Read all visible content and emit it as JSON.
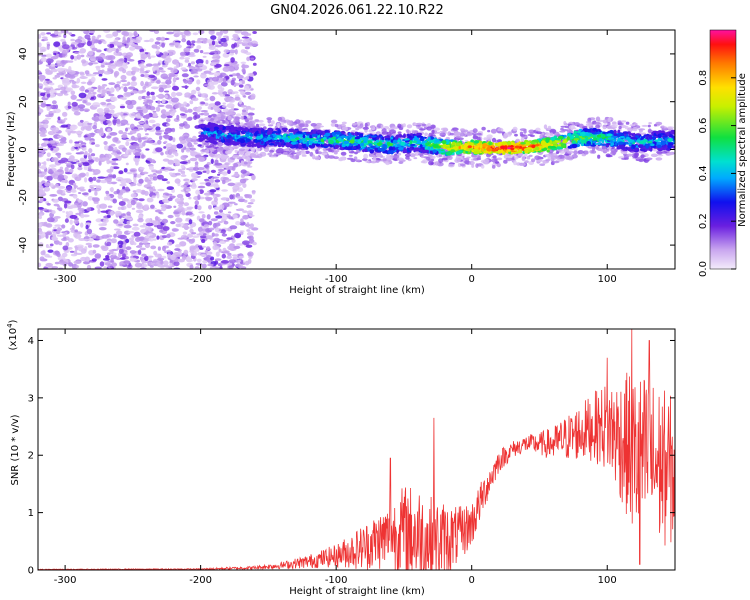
{
  "title": "GN04.2026.061.22.10.R22",
  "chart_data": [
    {
      "type": "heatmap",
      "xlabel": "Height of straight line (km)",
      "ylabel": "Frequency (Hz)",
      "xlim": [
        -320,
        150
      ],
      "ylim": [
        -50,
        50
      ],
      "x_ticks": [
        -300,
        -200,
        -100,
        0,
        100
      ],
      "y_ticks": [
        -40,
        -20,
        0,
        20,
        40
      ],
      "colorbar": {
        "label": "Normalized spectral amplitude",
        "range": [
          0,
          1
        ],
        "ticks": [
          "0.0",
          "0.2",
          "0.4",
          "0.6",
          "0.8"
        ]
      },
      "ridge": [
        {
          "x": -195,
          "y": 7,
          "amp": 0.35
        },
        {
          "x": -180,
          "y": 6,
          "amp": 0.4
        },
        {
          "x": -160,
          "y": 5,
          "amp": 0.4
        },
        {
          "x": -140,
          "y": 5,
          "amp": 0.45
        },
        {
          "x": -120,
          "y": 4,
          "amp": 0.45
        },
        {
          "x": -100,
          "y": 4,
          "amp": 0.5
        },
        {
          "x": -80,
          "y": 3,
          "amp": 0.5
        },
        {
          "x": -60,
          "y": 2,
          "amp": 0.5
        },
        {
          "x": -40,
          "y": 3,
          "amp": 0.45
        },
        {
          "x": -20,
          "y": 1,
          "amp": 0.7
        },
        {
          "x": 0,
          "y": 1,
          "amp": 0.85
        },
        {
          "x": 20,
          "y": 0.5,
          "amp": 0.95
        },
        {
          "x": 40,
          "y": 1,
          "amp": 0.9
        },
        {
          "x": 60,
          "y": 2,
          "amp": 0.75
        },
        {
          "x": 80,
          "y": 5,
          "amp": 0.6
        },
        {
          "x": 100,
          "y": 5,
          "amp": 0.5
        },
        {
          "x": 120,
          "y": 3,
          "amp": 0.45
        },
        {
          "x": 150,
          "y": 4,
          "amp": 0.4
        }
      ]
    },
    {
      "type": "line",
      "xlabel": "Height of straight line (km)",
      "ylabel": "SNR (10 * v/v)",
      "y_multiplier_label": "(x10",
      "y_multiplier_exp": "4",
      "xlim": [
        -320,
        150
      ],
      "ylim": [
        0,
        4.2
      ],
      "x_ticks": [
        -300,
        -200,
        -100,
        0,
        100
      ],
      "y_ticks": [
        0,
        1,
        2,
        3,
        4
      ],
      "color": "#ee3333",
      "envelope": {
        "x": [
          -320,
          -200,
          -160,
          -140,
          -120,
          -100,
          -80,
          -60,
          -50,
          -40,
          -30,
          -20,
          -10,
          0,
          10,
          20,
          30,
          40,
          50,
          60,
          70,
          80,
          90,
          100,
          110,
          120,
          130,
          140,
          150
        ],
        "mean": [
          0.01,
          0.015,
          0.04,
          0.08,
          0.15,
          0.25,
          0.4,
          0.6,
          0.7,
          0.6,
          0.5,
          0.5,
          0.6,
          0.8,
          1.4,
          1.9,
          2.1,
          2.2,
          2.2,
          2.2,
          2.3,
          2.4,
          2.5,
          2.5,
          2.3,
          2.0,
          1.9,
          1.8,
          1.7
        ],
        "spread": [
          0.005,
          0.01,
          0.03,
          0.06,
          0.12,
          0.2,
          0.4,
          0.6,
          0.8,
          0.9,
          0.8,
          0.7,
          0.5,
          0.4,
          0.3,
          0.2,
          0.15,
          0.15,
          0.2,
          0.3,
          0.4,
          0.5,
          0.6,
          0.8,
          1.1,
          1.5,
          1.5,
          1.4,
          1.3
        ]
      },
      "peaks": [
        {
          "x": -28,
          "y": 2.65
        },
        {
          "x": -60,
          "y": 1.95
        },
        {
          "x": 118,
          "y": 4.2
        },
        {
          "x": 131,
          "y": 4.0
        },
        {
          "x": 100,
          "y": 3.7
        },
        {
          "x": 124,
          "y": 0.1
        }
      ]
    }
  ]
}
